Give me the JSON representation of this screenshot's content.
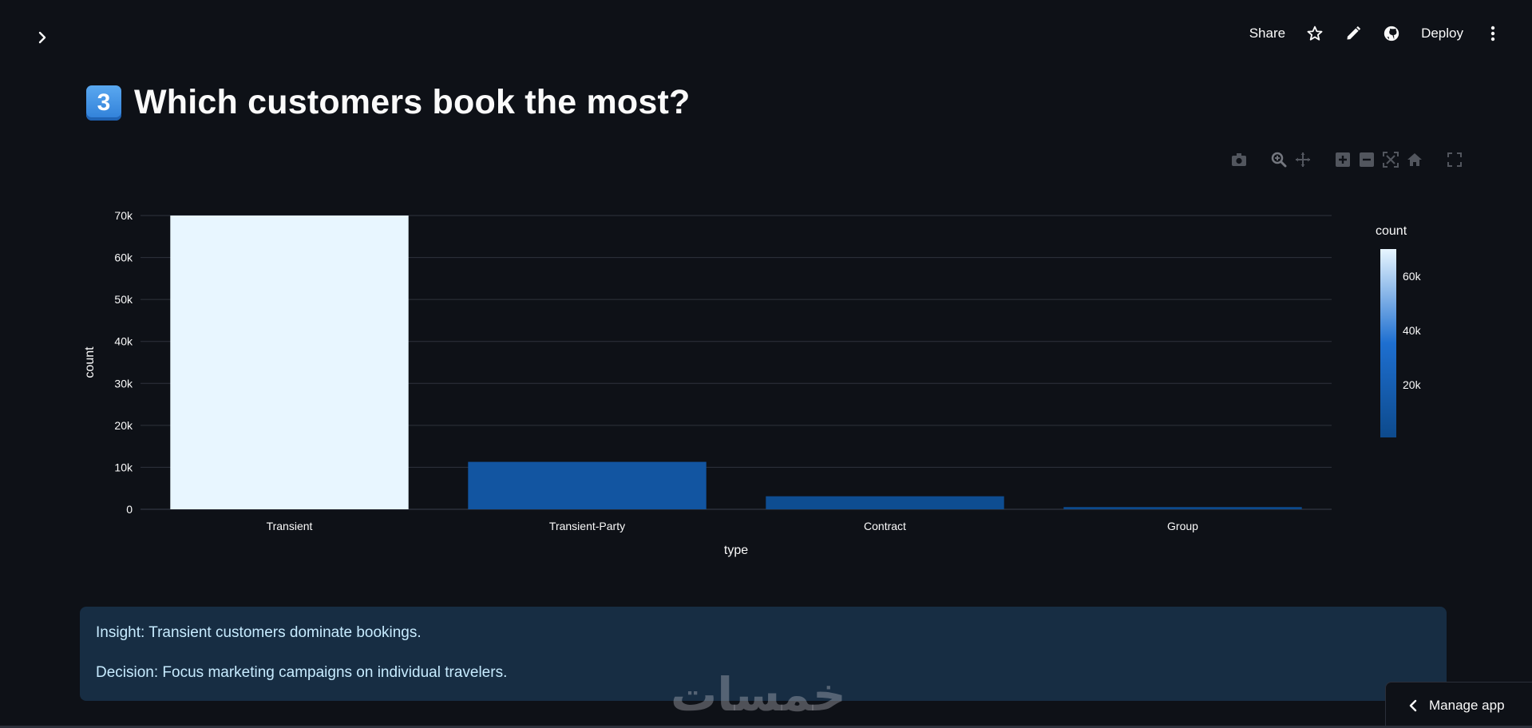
{
  "header": {
    "share_label": "Share",
    "deploy_label": "Deploy"
  },
  "page": {
    "title_emoji": "3",
    "title": "Which customers book the most?"
  },
  "chart_data": {
    "type": "bar",
    "categories": [
      "Transient",
      "Transient-Party",
      "Contract",
      "Group"
    ],
    "values": [
      70000,
      11300,
      3100,
      530
    ],
    "xlabel": "type",
    "ylabel": "count",
    "ylim": [
      0,
      70000
    ],
    "yticks": [
      0,
      10000,
      20000,
      30000,
      40000,
      50000,
      60000,
      70000
    ],
    "ytick_labels": [
      "0",
      "10k",
      "20k",
      "30k",
      "40k",
      "50k",
      "60k",
      "70k"
    ],
    "grid": true,
    "colorbar": {
      "title": "count",
      "tick_values": [
        20000,
        40000,
        60000
      ],
      "tick_labels": [
        "20k",
        "40k",
        "60k"
      ],
      "range": [
        530,
        70000
      ]
    },
    "colors": {
      "low": "#0d4a8c",
      "mid": "#1e6fd0",
      "high": "#e8f6ff"
    }
  },
  "insight": {
    "line1": "Insight: Transient customers dominate bookings.",
    "line2": "Decision: Focus marketing campaigns on individual travelers."
  },
  "manage_app": {
    "label": "Manage app"
  },
  "watermark": {
    "text": "خمسات"
  }
}
